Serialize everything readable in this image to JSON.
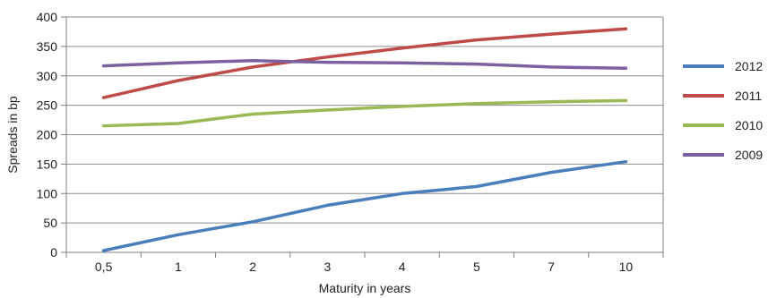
{
  "chart_data": {
    "type": "line",
    "title": "",
    "xlabel": "Maturity in years",
    "ylabel": "Spreads in bp",
    "categories": [
      "0,5",
      "1",
      "2",
      "3",
      "4",
      "5",
      "7",
      "10"
    ],
    "ylim": [
      0,
      400
    ],
    "yticks": [
      "0",
      "50",
      "100",
      "150",
      "200",
      "250",
      "300",
      "350",
      "400"
    ],
    "grid": "horizontal",
    "legend_position": "right",
    "series": [
      {
        "name": "2012",
        "color": "#4a7ebb",
        "values": [
          3,
          30,
          52,
          80,
          100,
          112,
          136,
          154
        ]
      },
      {
        "name": "2011",
        "color": "#be4b48",
        "values": [
          263,
          292,
          315,
          332,
          347,
          361,
          371,
          380
        ]
      },
      {
        "name": "2010",
        "color": "#98b954",
        "values": [
          215,
          219,
          235,
          242,
          248,
          253,
          256,
          258
        ]
      },
      {
        "name": "2009",
        "color": "#7d60a0",
        "values": [
          317,
          322,
          326,
          323,
          322,
          320,
          315,
          313
        ]
      }
    ]
  }
}
